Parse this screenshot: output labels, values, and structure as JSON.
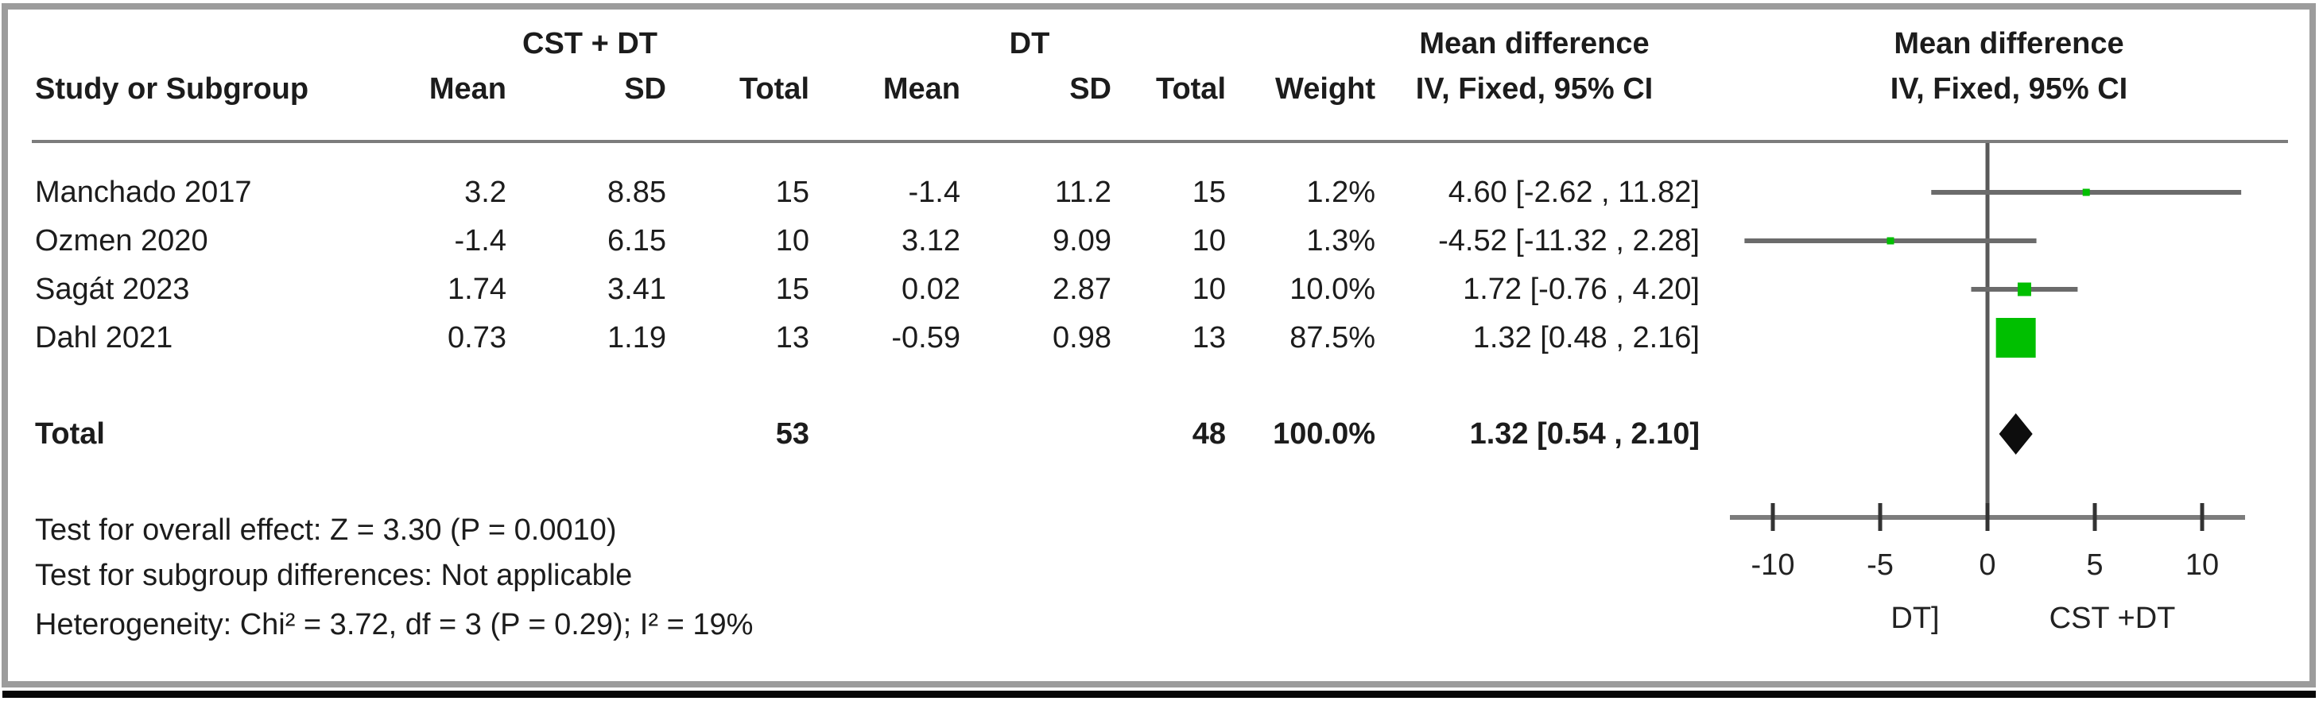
{
  "header": {
    "group1": "CST + DT",
    "group2": "DT",
    "md1": "Mean difference",
    "md2": "Mean difference",
    "col_study": "Study or Subgroup",
    "col_mean1": "Mean",
    "col_sd1": "SD",
    "col_total1": "Total",
    "col_mean2": "Mean",
    "col_sd2": "SD",
    "col_total2": "Total",
    "col_weight": "Weight",
    "col_iv1": "IV, Fixed, 95% CI",
    "col_iv2": "IV, Fixed, 95% CI"
  },
  "total_row": {
    "label": "Total",
    "total1": "53",
    "total2": "48",
    "weight": "100.0%",
    "md_label": "1.32 [0.54 , 2.10]"
  },
  "footer": {
    "line1": "Test for overall effect: Z = 3.30 (P = 0.0010)",
    "line2": "Test for subgroup differences: Not applicable",
    "line3": "Heterogeneity: Chi² = 3.72, df = 3 (P = 0.29); I² = 19%"
  },
  "colors": {
    "marker_green": "#00bf00",
    "diamond_black": "#0d0d0d",
    "ci_line": "#6b6b6b",
    "axis_line": "#7c7c7c",
    "zero_line": "#595959",
    "border_gray": "#9c9c9c"
  },
  "chart_data": {
    "type": "forest",
    "effect_measure": "Mean difference",
    "model": "IV, Fixed, 95% CI",
    "studies": [
      {
        "name": "Manchado 2017",
        "mean1": "3.2",
        "sd1": "8.85",
        "total1": "15",
        "mean2": "-1.4",
        "sd2": "11.2",
        "total2": "15",
        "weight_label": "1.2%",
        "weight_pct": 1.2,
        "md": 4.6,
        "ci_low": -2.62,
        "ci_high": 11.82,
        "md_label": "4.60 [-2.62 , 11.82]"
      },
      {
        "name": "Ozmen 2020",
        "mean1": "-1.4",
        "sd1": "6.15",
        "total1": "10",
        "mean2": "3.12",
        "sd2": "9.09",
        "total2": "10",
        "weight_label": "1.3%",
        "weight_pct": 1.3,
        "md": -4.52,
        "ci_low": -11.32,
        "ci_high": 2.28,
        "md_label": "-4.52 [-11.32 , 2.28]"
      },
      {
        "name": "Sagát 2023",
        "mean1": "1.74",
        "sd1": "3.41",
        "total1": "15",
        "mean2": "0.02",
        "sd2": "2.87",
        "total2": "10",
        "weight_label": "10.0%",
        "weight_pct": 10.0,
        "md": 1.72,
        "ci_low": -0.76,
        "ci_high": 4.2,
        "md_label": "1.72 [-0.76 , 4.20]"
      },
      {
        "name": "Dahl 2021",
        "mean1": "0.73",
        "sd1": "1.19",
        "total1": "13",
        "mean2": "-0.59",
        "sd2": "0.98",
        "total2": "13",
        "weight_label": "87.5%",
        "weight_pct": 87.5,
        "md": 1.32,
        "ci_low": 0.48,
        "ci_high": 2.16,
        "md_label": "1.32 [0.48 , 2.16]"
      }
    ],
    "total": {
      "label": "Total",
      "total1": 53,
      "total2": 48,
      "weight_label": "100.0%",
      "md": 1.32,
      "ci_low": 0.54,
      "ci_high": 2.1,
      "md_label": "1.32 [0.54 , 2.10]"
    },
    "axis": {
      "ticks": [
        -10,
        -5,
        0,
        5,
        10
      ],
      "min": -12,
      "max": 12,
      "left_label": "DT]",
      "right_label": "CST +DT"
    }
  }
}
